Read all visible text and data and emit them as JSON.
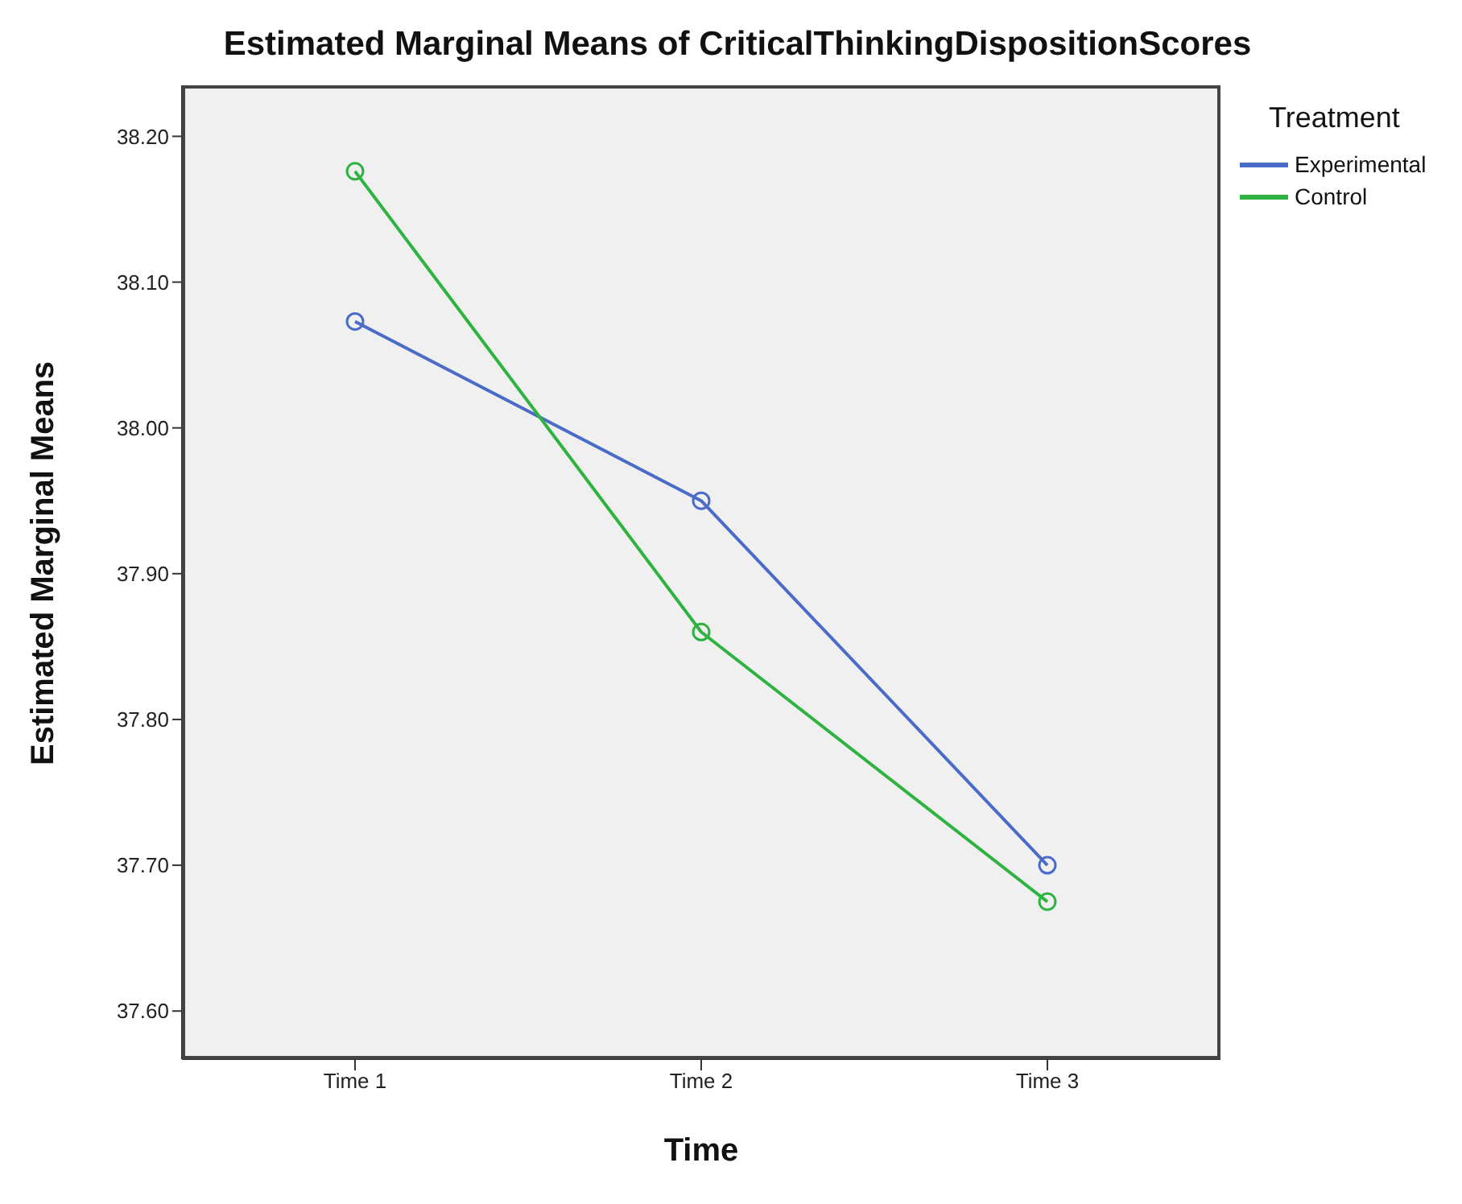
{
  "chart_data": {
    "type": "line",
    "title": "Estimated Marginal Means of CriticalThinkingDispositionScores",
    "xlabel": "Time",
    "ylabel": "Estimated Marginal Means",
    "legend_title": "Treatment",
    "categories": [
      "Time 1",
      "Time 2",
      "Time 3"
    ],
    "series": [
      {
        "name": "Experimental",
        "color": "#4a6cc8",
        "values": [
          38.073,
          37.95,
          37.7
        ]
      },
      {
        "name": "Control",
        "color": "#2fb340",
        "values": [
          38.176,
          37.86,
          37.675
        ]
      }
    ],
    "ylim": [
      37.567,
      38.235
    ],
    "yticks": [
      {
        "value": 37.6,
        "label": "37.60"
      },
      {
        "value": 37.7,
        "label": "37.70"
      },
      {
        "value": 37.8,
        "label": "37.80"
      },
      {
        "value": 37.9,
        "label": "37.90"
      },
      {
        "value": 38.0,
        "label": "38.00"
      },
      {
        "value": 38.1,
        "label": "38.10"
      },
      {
        "value": 38.2,
        "label": "38.20"
      }
    ],
    "grid": false,
    "legend": "top right",
    "marker": "circle",
    "line_style": "solid"
  }
}
